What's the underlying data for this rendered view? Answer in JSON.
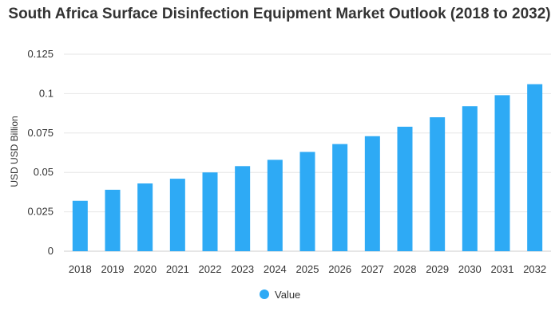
{
  "chart_data": {
    "type": "bar",
    "title": "South Africa Surface Disinfection Equipment Market Outlook (2018 to 2032)",
    "xlabel": "",
    "ylabel": "USD USD Billion",
    "ylim": [
      0,
      0.125
    ],
    "yticks": [
      "0",
      "0.025",
      "0.05",
      "0.075",
      "0.1",
      "0.125"
    ],
    "ytick_values": [
      0,
      0.025,
      0.05,
      0.075,
      0.1,
      0.125
    ],
    "categories": [
      "2018",
      "2019",
      "2020",
      "2021",
      "2022",
      "2023",
      "2024",
      "2025",
      "2026",
      "2027",
      "2028",
      "2029",
      "2030",
      "2031",
      "2032"
    ],
    "series": [
      {
        "name": "Value",
        "color": "#2EAAF5",
        "values": [
          0.032,
          0.039,
          0.043,
          0.046,
          0.05,
          0.054,
          0.058,
          0.063,
          0.068,
          0.073,
          0.079,
          0.085,
          0.092,
          0.099,
          0.106
        ]
      }
    ],
    "legend": "bottom-center",
    "grid": true
  }
}
